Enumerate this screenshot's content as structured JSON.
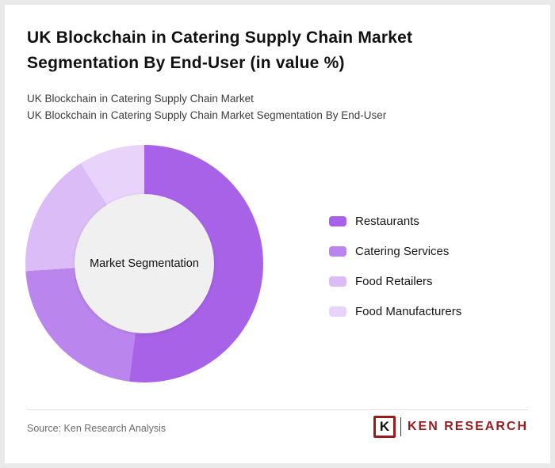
{
  "page": {
    "title": "UK Blockchain in Catering Supply Chain Market Segmentation By End-User (in value %)",
    "subtitle1": "UK Blockchain in Catering Supply Chain Market",
    "subtitle2": "UK Blockchain in Catering Supply Chain Market Segmentation By End-User"
  },
  "chart_data": {
    "type": "pie",
    "style": "donut",
    "title": "UK Blockchain in Catering Supply Chain Market Segmentation By End-User (in value %)",
    "center_label": "Market Segmentation",
    "legend_position": "right",
    "values_unit": "value %",
    "start_angle_deg": 0,
    "direction": "clockwise",
    "segments": [
      {
        "label": "Restaurants",
        "value": 52,
        "color": "#a862e8"
      },
      {
        "label": "Catering Services",
        "value": 22,
        "color": "#bb85ee"
      },
      {
        "label": "Food Retailers",
        "value": 17,
        "color": "#dcbcf6"
      },
      {
        "label": "Food Manufacturers",
        "value": 9,
        "color": "#e8d3fa"
      }
    ]
  },
  "footer": {
    "source": "Source: Ken Research Analysis",
    "logo": {
      "k": "K",
      "text": "KEN RESEARCH"
    }
  }
}
